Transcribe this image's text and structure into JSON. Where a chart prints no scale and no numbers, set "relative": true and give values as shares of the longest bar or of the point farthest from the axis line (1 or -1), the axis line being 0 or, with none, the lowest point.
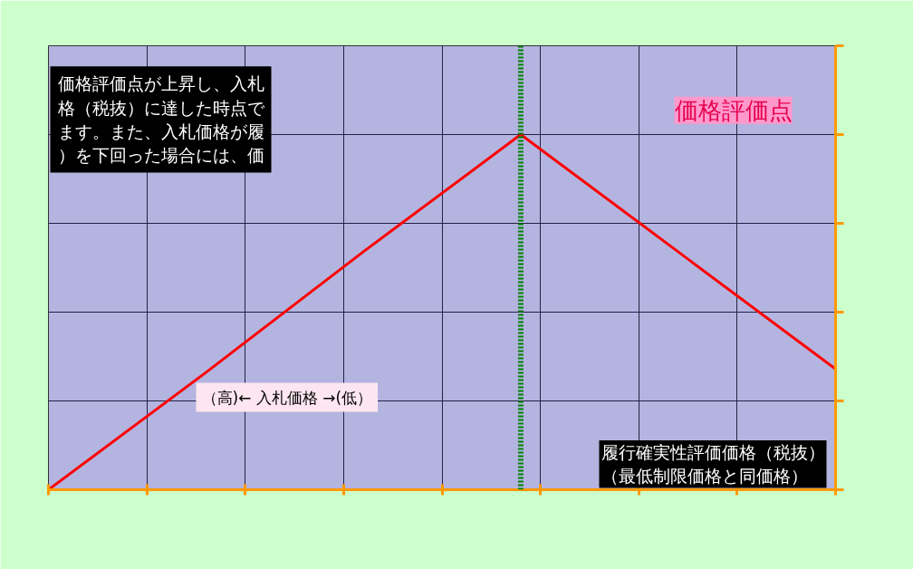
{
  "chart_data": {
    "type": "line",
    "relative": true,
    "categories": [
      null,
      null,
      null,
      null,
      null,
      null
    ],
    "xlabel": "（高)← 入札価格 →(低）",
    "series": [
      {
        "name": "価格評価点",
        "color": "#ff0000",
        "values": [
          0,
          0.33,
          0.67,
          1,
          0.67,
          0.34
        ]
      }
    ],
    "annotations": [
      "価格評価点が上昇し、入札格（税抜）に達した時点でます。また、入札価格が履）を下回った場合には、価",
      "履行確実性評価価格（税抜）（最低制限価格と同価格）"
    ],
    "grid": true,
    "tick_labels": false,
    "marker": "none",
    "line_style": "solid"
  }
}
